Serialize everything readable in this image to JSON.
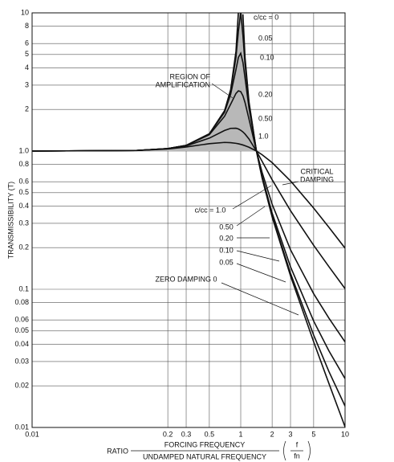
{
  "chart_data": {
    "type": "line",
    "ylabel": "TRANSMISSIBILITY (T)",
    "xlabel": {
      "ratio": "RATIO",
      "numerator": "FORCING FREQUENCY",
      "denominator": "UNDAMPED NATURAL FREQUENCY",
      "f": "f",
      "fn": "fn"
    },
    "log_x": true,
    "log_y": true,
    "grid": true,
    "color": "#111111",
    "xlim": [
      0.01,
      10
    ],
    "ylim": [
      0.01,
      10
    ],
    "xticks": [
      0.01,
      0.2,
      0.3,
      0.5,
      1,
      2,
      3,
      5,
      10
    ],
    "yticks": [
      0.01,
      0.02,
      0.03,
      0.04,
      0.05,
      0.06,
      0.08,
      0.1,
      0.2,
      0.3,
      0.4,
      0.5,
      0.6,
      0.8,
      {
        "value": 1,
        "label": "1.0"
      },
      2,
      3,
      4,
      5,
      6,
      8,
      10
    ],
    "x": [
      0.01,
      0.1,
      0.2,
      0.3,
      0.5,
      0.7,
      0.8,
      0.9,
      0.95,
      1.0,
      1.05,
      1.1,
      1.2,
      1.414,
      1.6,
      2,
      3,
      5,
      7,
      10
    ],
    "series": [
      {
        "name": "c/cc = 0",
        "values": [
          1.0,
          1.0101,
          1.0417,
          1.0989,
          1.3333,
          1.9608,
          2.7778,
          5.2632,
          10.256,
          null,
          9.756,
          4.762,
          2.273,
          1.0,
          0.641,
          0.3333,
          0.125,
          0.04167,
          0.02083,
          0.0101
        ]
      },
      {
        "name": "0.05",
        "values": [
          1.0,
          1.01,
          1.0417,
          1.0988,
          1.332,
          1.9473,
          2.7203,
          4.7757,
          7.379,
          10.05,
          6.852,
          4.2436,
          2.2084,
          1.001,
          0.6458,
          0.3392,
          0.1304,
          0.04657,
          0.02543,
          0.01428
        ]
      },
      {
        "name": "0.10",
        "values": [
          1.0,
          1.0101,
          1.0416,
          1.0985,
          1.3282,
          1.9093,
          2.5707,
          3.8821,
          4.7663,
          5.099,
          4.3727,
          3.3666,
          2.0519,
          1.0009,
          0.6593,
          0.3559,
          0.1454,
          0.05887,
          0.03583,
          0.02258
        ]
      },
      {
        "name": "0.20",
        "values": [
          1.0,
          1.0101,
          1.0414,
          1.0973,
          1.3138,
          1.7849,
          2.1799,
          2.611,
          2.7269,
          2.6926,
          2.5088,
          2.2409,
          1.7035,
          1.0008,
          0.7041,
          0.4125,
          0.1931,
          0.09285,
          0.06184,
          0.04161
        ]
      },
      {
        "name": "0.50",
        "values": [
          1.0,
          1.01,
          1.04,
          1.0896,
          1.2403,
          1.4094,
          1.4598,
          1.4626,
          1.4443,
          1.4142,
          1.3744,
          1.3275,
          1.2222,
          1.0003,
          0.8444,
          0.6202,
          0.3701,
          0.208,
          0.1458,
          0.101
        ]
      },
      {
        "name": "1.0",
        "values": [
          1.0,
          1.0097,
          1.0356,
          1.0699,
          1.1314,
          1.1547,
          1.1505,
          1.1376,
          1.1286,
          1.118,
          1.1063,
          1.0935,
          1.0656,
          1.0001,
          0.9418,
          0.8246,
          0.6083,
          0.3865,
          0.2807,
          0.1983
        ]
      }
    ],
    "annotations": {
      "region": [
        "REGION OF",
        "AMPLIFICATION"
      ],
      "critical": [
        "CRITICAL",
        "DAMPING"
      ],
      "right_labels": [
        "c/cc = 1.0",
        "0.50",
        "0.20",
        "0.10",
        "0.05",
        "ZERO DAMPING  0"
      ]
    }
  }
}
